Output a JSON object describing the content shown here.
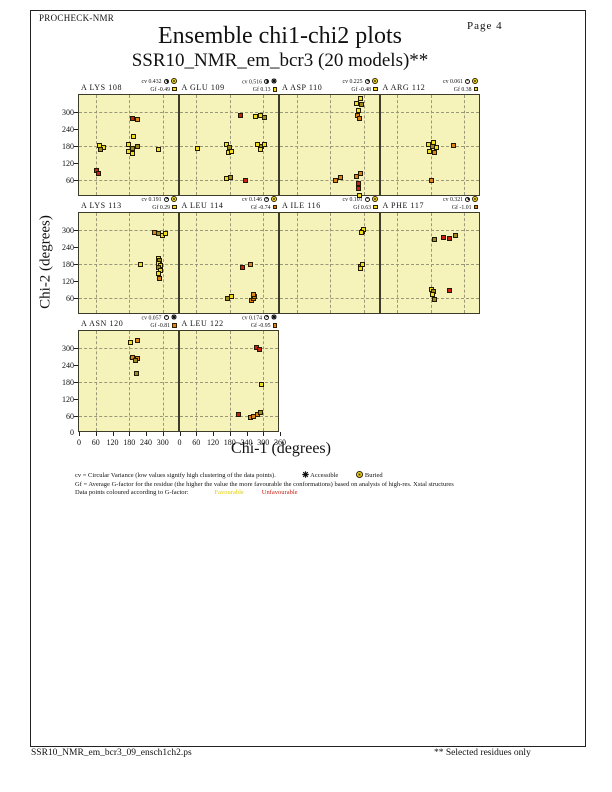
{
  "page": {
    "app_name": "PROCHECK-NMR",
    "page_label": "Page  4",
    "title": "Ensemble chi1-chi2 plots",
    "subtitle": "SSR10_NMR_em_bcr3 (20 models)**",
    "footer_left": "SSR10_NMR_em_bcr3_09_ensch1ch2.ps",
    "footer_right": "** Selected residues only"
  },
  "axes": {
    "x_title": "Chi-1 (degrees)",
    "y_title": "Chi-2 (degrees)",
    "y_tick_labels": [
      300,
      240,
      180,
      120,
      60
    ],
    "x_tick_labels_first": [
      0,
      60,
      120,
      180,
      240,
      300
    ],
    "x_tick_labels_last": [
      0,
      60,
      120,
      180,
      240,
      300,
      360
    ],
    "origin_label": "0",
    "min": 0,
    "max": 360,
    "grid_lines": [
      60,
      180,
      300
    ],
    "tick_step": 60
  },
  "labels": {
    "cv_prefix": "cv",
    "gf_prefix": "Gf"
  },
  "legend": {
    "cv_line": "cv = Circular Variance (low values signify high clustering of the data points).",
    "accessible_label": "Accessible",
    "buried_label": "Buried",
    "gf_line": "Gf = Average G-factor for the residue (the higher the value the more favourable the conformations) based on analysis of high-res. Xstal structures",
    "colour_line": "Data points coloured according to G-factor:",
    "favourable_label": "Favourable",
    "unfavourable_label": "Unfavourable"
  },
  "colors": {
    "plot_bg": "#f6f3ba",
    "favourable_yellow": "#f2df1f",
    "unfavourable_red": "#cc2012",
    "orange": "#dd8516",
    "olive_overlap": "#a08b1e",
    "grid": "#99997a"
  },
  "chart_data": {
    "type": "scatter",
    "title": "Ensemble chi1-chi2 plots",
    "xlabel": "Chi-1 (degrees)",
    "ylabel": "Chi-2 (degrees)",
    "x_range": [
      0,
      360
    ],
    "y_range": [
      0,
      360
    ],
    "grid": "dashed at 60, 180, 300 degrees",
    "point_color_key": {
      "y": "favourable (yellow)",
      "o": "less favourable (orange)",
      "r": "unfavourable (red)",
      "d": "overlapping points (dark olive)"
    },
    "plots": [
      {
        "residue": "A LYS 108",
        "row": 0,
        "col": 0,
        "cv": "0.432",
        "cv_frac": 0.432,
        "exposure": "buried",
        "gf": "-0.49",
        "gf_color": "#f2df1f",
        "points": [
          [
            191,
            278,
            "r"
          ],
          [
            209,
            272,
            "o"
          ],
          [
            197,
            213,
            "y"
          ],
          [
            179,
            184,
            "y"
          ],
          [
            191,
            172,
            "d"
          ],
          [
            177,
            162,
            "y"
          ],
          [
            191,
            154,
            "y"
          ],
          [
            209,
            178,
            "d"
          ],
          [
            72,
            181,
            "y"
          ],
          [
            86,
            174,
            "y"
          ],
          [
            78,
            166,
            "d"
          ],
          [
            285,
            169,
            "y"
          ],
          [
            62,
            92,
            "r"
          ],
          [
            69,
            84,
            "r"
          ]
        ]
      },
      {
        "residue": "A GLU 109",
        "row": 0,
        "col": 1,
        "cv": "0.516",
        "cv_frac": 0.516,
        "exposure": "accessible",
        "gf": "0.13",
        "gf_color": "#f2df1f",
        "points": [
          [
            218,
            286,
            "r"
          ],
          [
            273,
            284,
            "y"
          ],
          [
            291,
            289,
            "y"
          ],
          [
            304,
            280,
            "d"
          ],
          [
            65,
            172,
            "y"
          ],
          [
            168,
            186,
            "y"
          ],
          [
            179,
            174,
            "d"
          ],
          [
            174,
            158,
            "y"
          ],
          [
            186,
            162,
            "y"
          ],
          [
            280,
            184,
            "y"
          ],
          [
            294,
            178,
            "d"
          ],
          [
            304,
            186,
            "y"
          ],
          [
            289,
            169,
            "y"
          ],
          [
            168,
            66,
            "y"
          ],
          [
            182,
            70,
            "d"
          ],
          [
            235,
            60,
            "r"
          ]
        ]
      },
      {
        "residue": "A ASP 110",
        "row": 0,
        "col": 2,
        "cv": "0.225",
        "cv_frac": 0.225,
        "exposure": "buried",
        "gf": "-0.48",
        "gf_color": "#f2df1f",
        "points": [
          [
            287,
            346,
            "y"
          ],
          [
            273,
            331,
            "y"
          ],
          [
            291,
            325,
            "d"
          ],
          [
            282,
            307,
            "y"
          ],
          [
            278,
            287,
            "o"
          ],
          [
            286,
            276,
            "o"
          ],
          [
            198,
            60,
            "o"
          ],
          [
            218,
            69,
            "o"
          ],
          [
            273,
            74,
            "o"
          ],
          [
            287,
            82,
            "o"
          ],
          [
            280,
            46,
            "r"
          ],
          [
            282,
            30,
            "r"
          ],
          [
            286,
            6,
            "y"
          ]
        ]
      },
      {
        "residue": "A ARG 112",
        "row": 0,
        "col": 3,
        "cv": "0.061",
        "cv_frac": 0.061,
        "exposure": "buried",
        "gf": "0.38",
        "gf_color": "#f2df1f",
        "points": [
          [
            171,
            187,
            "y"
          ],
          [
            189,
            193,
            "y"
          ],
          [
            186,
            178,
            "d"
          ],
          [
            177,
            162,
            "y"
          ],
          [
            195,
            158,
            "o"
          ],
          [
            201,
            174,
            "y"
          ],
          [
            260,
            181,
            "o"
          ],
          [
            183,
            60,
            "o"
          ]
        ]
      },
      {
        "residue": "A LYS 113",
        "row": 1,
        "col": 0,
        "cv": "0.191",
        "cv_frac": 0.191,
        "exposure": "buried",
        "gf": "0.29",
        "gf_color": "#f2df1f",
        "points": [
          [
            272,
            290,
            "o"
          ],
          [
            283,
            286,
            "d"
          ],
          [
            298,
            282,
            "y"
          ],
          [
            310,
            288,
            "y"
          ],
          [
            284,
            200,
            "y"
          ],
          [
            290,
            192,
            "d"
          ],
          [
            286,
            182,
            "y"
          ],
          [
            293,
            174,
            "y"
          ],
          [
            284,
            166,
            "d"
          ],
          [
            291,
            156,
            "y"
          ],
          [
            286,
            146,
            "y"
          ],
          [
            288,
            130,
            "o"
          ],
          [
            221,
            179,
            "y"
          ]
        ]
      },
      {
        "residue": "A LEU 114",
        "row": 1,
        "col": 1,
        "cv": "0.146",
        "cv_frac": 0.146,
        "exposure": "buried",
        "gf": "-0.74",
        "gf_color": "#dd8516",
        "points": [
          [
            225,
            167,
            "r"
          ],
          [
            255,
            179,
            "o"
          ],
          [
            171,
            59,
            "d"
          ],
          [
            187,
            64,
            "y"
          ],
          [
            258,
            52,
            "o"
          ],
          [
            264,
            60,
            "o"
          ],
          [
            270,
            66,
            "o"
          ],
          [
            266,
            73,
            "o"
          ]
        ]
      },
      {
        "residue": "A ILE 116",
        "row": 1,
        "col": 2,
        "cv": "0.101",
        "cv_frac": 0.101,
        "exposure": "buried",
        "gf": "0.63",
        "gf_color": "#f2df1f",
        "points": [
          [
            295,
            296,
            "d"
          ],
          [
            300,
            302,
            "y"
          ],
          [
            292,
            290,
            "y"
          ],
          [
            290,
            172,
            "d"
          ],
          [
            296,
            177,
            "y"
          ],
          [
            288,
            164,
            "y"
          ]
        ]
      },
      {
        "residue": "A PHE 117",
        "row": 1,
        "col": 3,
        "cv": "0.321",
        "cv_frac": 0.321,
        "exposure": "buried",
        "gf": "-1.01",
        "gf_color": "#dd8516",
        "points": [
          [
            194,
            267,
            "d"
          ],
          [
            225,
            275,
            "r"
          ],
          [
            248,
            271,
            "r"
          ],
          [
            268,
            282,
            "d"
          ],
          [
            183,
            91,
            "y"
          ],
          [
            191,
            83,
            "d"
          ],
          [
            186,
            74,
            "y"
          ],
          [
            248,
            88,
            "r"
          ],
          [
            194,
            53,
            "d"
          ]
        ]
      },
      {
        "residue": "A ASN 120",
        "row": 2,
        "col": 0,
        "cv": "0.057",
        "cv_frac": 0.057,
        "exposure": "accessible",
        "gf": "-0.81",
        "gf_color": "#dd8516",
        "points": [
          [
            185,
            321,
            "y"
          ],
          [
            211,
            327,
            "o"
          ],
          [
            191,
            268,
            "o"
          ],
          [
            209,
            262,
            "o"
          ],
          [
            201,
            257,
            "d"
          ],
          [
            205,
            209,
            "d"
          ]
        ]
      },
      {
        "residue": "A LEU 122",
        "row": 2,
        "col": 1,
        "cv": "0.174",
        "cv_frac": 0.174,
        "exposure": "accessible",
        "gf": "-0.95",
        "gf_color": "#dd8516",
        "points": [
          [
            276,
            303,
            "r"
          ],
          [
            287,
            294,
            "r"
          ],
          [
            293,
            172,
            "y"
          ],
          [
            212,
            66,
            "r"
          ],
          [
            254,
            54,
            "o"
          ],
          [
            266,
            59,
            "o"
          ],
          [
            278,
            66,
            "o"
          ],
          [
            290,
            73,
            "d"
          ]
        ]
      }
    ]
  }
}
